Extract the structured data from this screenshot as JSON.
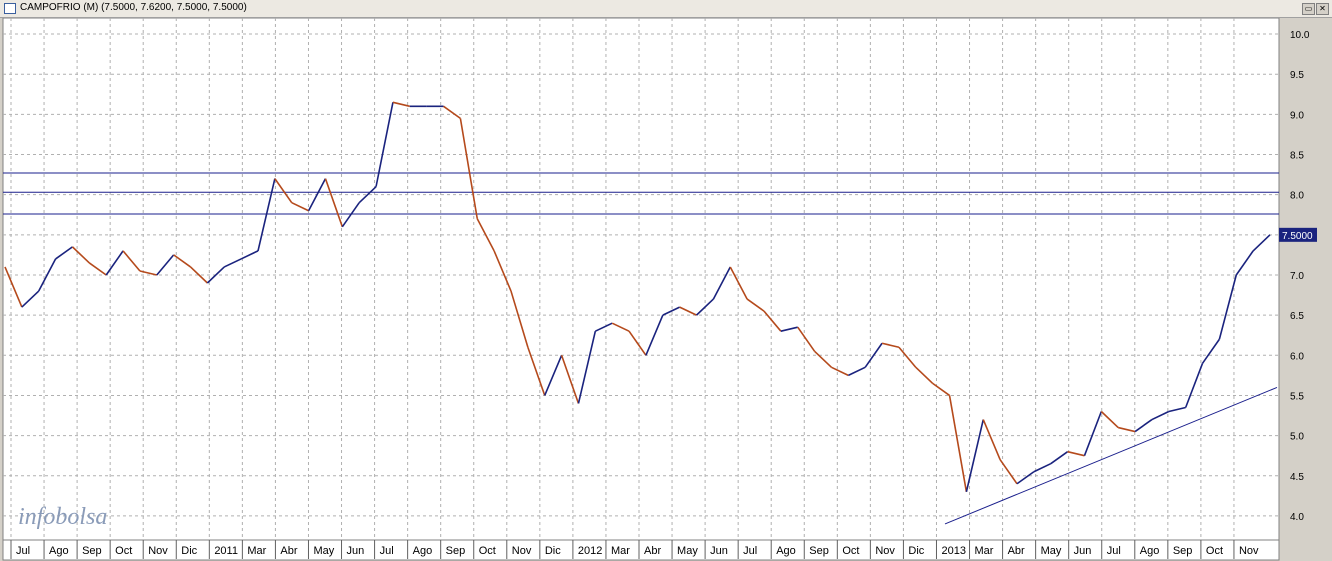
{
  "window": {
    "title": "CAMPOFRIO (M) (7.5000, 7.6200, 7.5000, 7.5000)",
    "restore_icon": "restore-icon",
    "close_icon": "close-icon"
  },
  "watermark": "infobolsa",
  "colors": {
    "up": "#1a237e",
    "down": "#b54a1c",
    "line": "#1a1f8c",
    "grid": "#b0b0b0",
    "price_tag": "#1a237e"
  },
  "chart_data": {
    "type": "line",
    "title": "CAMPOFRIO (M) (7.5000, 7.6200, 7.5000, 7.5000)",
    "ylim": [
      3.7,
      10.2
    ],
    "y_ticks": [
      "10.0",
      "9.5",
      "9.0",
      "8.5",
      "8.0",
      "7.5",
      "7.0",
      "6.5",
      "6.0",
      "5.5",
      "5.0",
      "4.5",
      "4.0"
    ],
    "x_ticks": [
      "Jul",
      "Ago",
      "Sep",
      "Oct",
      "Nov",
      "Dic",
      "2011",
      "Mar",
      "Abr",
      "May",
      "Jun",
      "Jul",
      "Ago",
      "Sep",
      "Oct",
      "Nov",
      "Dic",
      "2012",
      "Mar",
      "Abr",
      "May",
      "Jun",
      "Jul",
      "Ago",
      "Sep",
      "Oct",
      "Nov",
      "Dic",
      "2013",
      "Mar",
      "Abr",
      "May",
      "Jun",
      "Jul",
      "Ago",
      "Sep",
      "Oct",
      "Nov"
    ],
    "grid": true,
    "last_price": "7.5000",
    "series": [
      {
        "values": [
          7.1,
          6.6,
          6.8,
          7.2,
          7.35,
          7.15,
          7.0,
          7.3,
          7.05,
          7.0,
          7.25,
          7.1,
          6.9,
          7.1,
          7.2,
          7.3,
          8.2,
          7.9,
          7.8,
          8.2,
          7.6,
          7.9,
          8.1,
          9.15,
          9.1,
          9.1,
          9.1,
          8.95,
          7.7,
          7.3,
          6.8,
          6.1,
          5.5,
          6.0,
          5.4,
          6.3,
          6.4,
          6.3,
          6.0,
          6.5,
          6.6,
          6.5,
          6.7,
          7.1,
          6.7,
          6.55,
          6.3,
          6.35,
          6.05,
          5.85,
          5.75,
          5.85,
          6.15,
          6.1,
          5.85,
          5.65,
          5.5,
          4.3,
          5.2,
          4.7,
          4.4,
          4.55,
          4.65,
          4.8,
          4.75,
          5.3,
          5.1,
          5.05,
          5.2,
          5.3,
          5.35,
          5.9,
          6.2,
          7.0,
          7.3,
          7.5
        ]
      }
    ],
    "horizontal_lines": [
      8.27,
      8.03,
      7.76
    ],
    "trendline": {
      "from": [
        "Dic 2012",
        3.9
      ],
      "to": [
        "Nov 2013",
        5.6
      ]
    }
  }
}
